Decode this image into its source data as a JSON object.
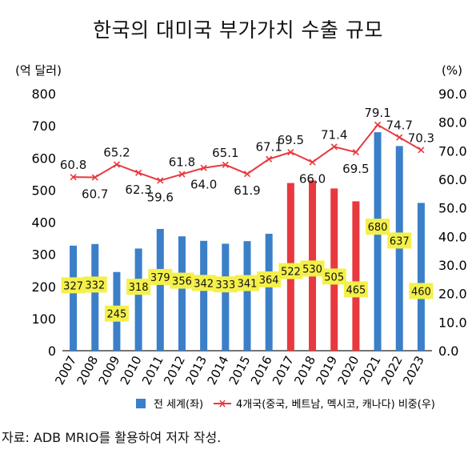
{
  "chart_data": {
    "type": "bar",
    "title": "한국의 대미국 부가가치 수출 규모",
    "left_unit": "(억 달러)",
    "right_unit": "(%)",
    "source": "자료: ADB MRIO를 활용하여 저자 작성.",
    "categories": [
      "2007",
      "2008",
      "2009",
      "2010",
      "2011",
      "2012",
      "2013",
      "2014",
      "2015",
      "2016",
      "2017",
      "2018",
      "2019",
      "2020",
      "2021",
      "2022",
      "2023"
    ],
    "y_left": {
      "lim": [
        0,
        800
      ],
      "ticks": [
        "0",
        "100",
        "200",
        "300",
        "400",
        "500",
        "600",
        "700",
        "800"
      ]
    },
    "y_right": {
      "lim": [
        0,
        90
      ],
      "ticks": [
        "0.0",
        "10.0",
        "20.0",
        "30.0",
        "40.0",
        "50.0",
        "60.0",
        "70.0",
        "80.0",
        "90.0"
      ]
    },
    "bars": {
      "name": "전 세계(좌)",
      "values": [
        327,
        332,
        245,
        318,
        379,
        356,
        342,
        333,
        341,
        364,
        522,
        530,
        505,
        465,
        680,
        637,
        460
      ],
      "labels": [
        "327",
        "332",
        "245",
        "318",
        "379",
        "356",
        "342",
        "333",
        "341",
        "364",
        "522",
        "530",
        "505",
        "465",
        "680",
        "637",
        "460"
      ],
      "colors": [
        "blue",
        "blue",
        "blue",
        "blue",
        "blue",
        "blue",
        "blue",
        "blue",
        "blue",
        "blue",
        "red",
        "red",
        "red",
        "red",
        "blue",
        "blue",
        "blue"
      ]
    },
    "line": {
      "name": "4개국(중국, 베트남, 멕시코, 캐나다) 비중(우)",
      "values": [
        60.8,
        60.7,
        65.2,
        62.3,
        59.6,
        61.8,
        64.0,
        65.1,
        61.9,
        67.1,
        69.5,
        66.0,
        71.4,
        69.5,
        79.1,
        74.7,
        70.3
      ],
      "labels": [
        "60.8",
        "60.7",
        "65.2",
        "62.3",
        "59.6",
        "61.8",
        "64.0",
        "65.1",
        "61.9",
        "67.1",
        "69.5",
        "66.0",
        "71.4",
        "69.5",
        "79.1",
        "74.7",
        "70.3"
      ]
    },
    "colors": {
      "blue": "#3b7fc8",
      "red": "#e8393f",
      "line": "#e8393f",
      "label_bg": "#f4f04a"
    },
    "legend_position": "bottom"
  }
}
